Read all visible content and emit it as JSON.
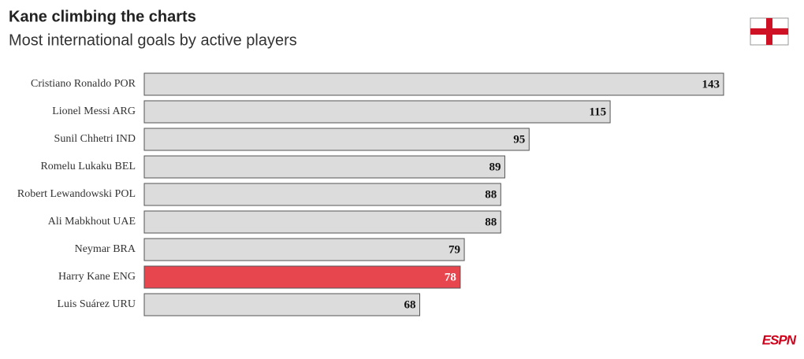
{
  "chart_data": {
    "type": "bar",
    "orientation": "horizontal",
    "title": "Kane climbing the charts",
    "subtitle": "Most international goals by active players",
    "categories": [
      "Cristiano Ronaldo POR",
      "Lionel Messi ARG",
      "Sunil Chhetri IND",
      "Romelu Lukaku BEL",
      "Robert Lewandowski POL",
      "Ali Mabkhout UAE",
      "Neymar BRA",
      "Harry Kane ENG",
      "Luis Suárez URU"
    ],
    "values": [
      143,
      115,
      95,
      89,
      88,
      88,
      79,
      78,
      68
    ],
    "colors": [
      "#dcdcdc",
      "#dcdcdc",
      "#dcdcdc",
      "#dcdcdc",
      "#dcdcdc",
      "#dcdcdc",
      "#dcdcdc",
      "#e8464f",
      "#dcdcdc"
    ],
    "logo": "ESPN"
  }
}
